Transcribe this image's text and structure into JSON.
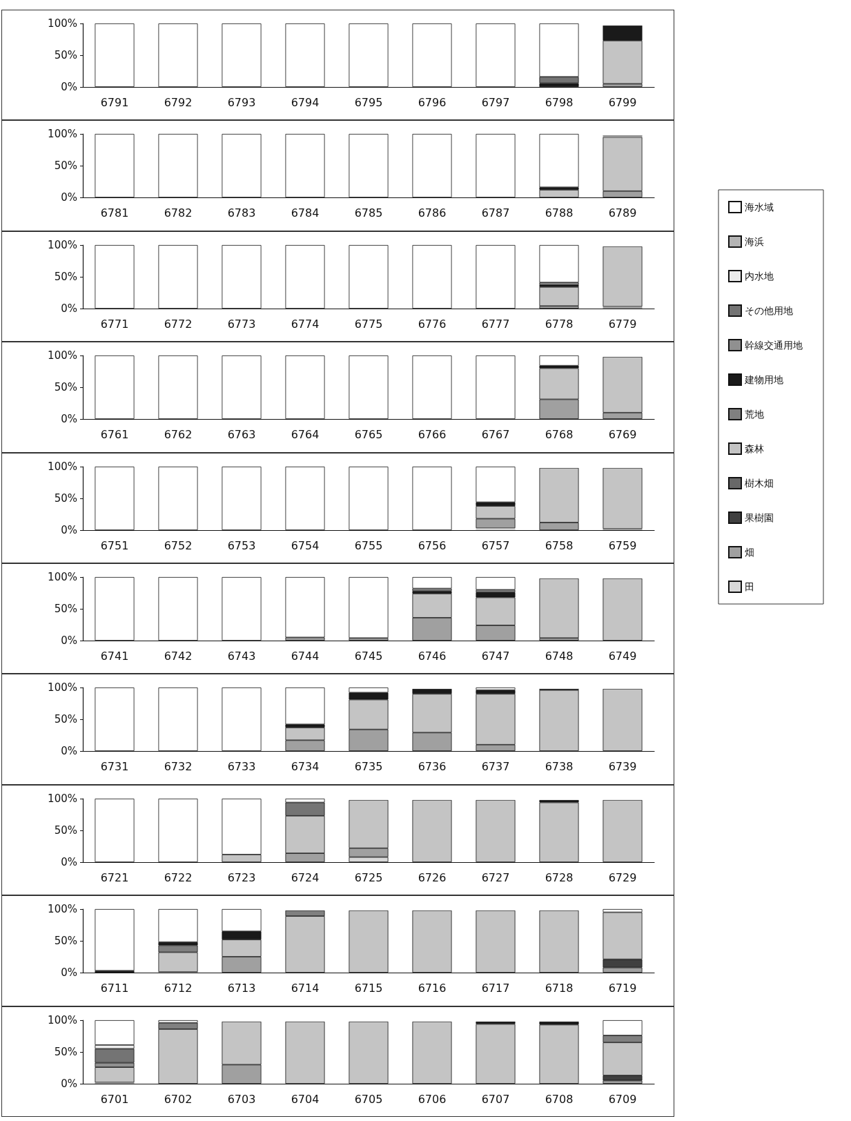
{
  "chart_data": [
    {
      "type": "bar",
      "stacked": true,
      "legend": "right",
      "categories": [
        "6791",
        "6792",
        "6793",
        "6794",
        "6795",
        "6796",
        "6797",
        "6798",
        "6799"
      ],
      "ylim": [
        0,
        100
      ],
      "yticks": [
        {
          "value": 0,
          "label": "0%"
        },
        {
          "value": 50,
          "label": "50%"
        },
        {
          "value": 100,
          "label": "100%"
        }
      ],
      "series": [
        {
          "name": "田",
          "color": "#d8d8d8",
          "values": [
            0,
            0,
            0,
            0,
            0,
            0,
            0,
            0,
            0
          ]
        },
        {
          "name": "畑",
          "color": "#a0a0a0",
          "values": [
            0,
            0,
            0,
            0,
            0,
            0,
            0,
            0,
            5
          ]
        },
        {
          "name": "果樹園",
          "color": "#404040",
          "values": [
            0,
            0,
            0,
            0,
            0,
            0,
            0,
            0,
            0
          ]
        },
        {
          "name": "樹木畑",
          "color": "#686868",
          "values": [
            0,
            0,
            0,
            0,
            0,
            0,
            0,
            0,
            0
          ]
        },
        {
          "name": "森林",
          "color": "#c4c4c4",
          "values": [
            0,
            0,
            0,
            0,
            0,
            0,
            0,
            0,
            68
          ]
        },
        {
          "name": "荒地",
          "color": "#808080",
          "values": [
            0,
            0,
            0,
            0,
            0,
            0,
            0,
            0,
            0
          ]
        },
        {
          "name": "建物用地",
          "color": "#1a1a1a",
          "values": [
            0,
            0,
            0,
            0,
            0,
            0,
            0,
            6,
            24
          ]
        },
        {
          "name": "幹線交通用地",
          "color": "#909090",
          "values": [
            0,
            0,
            0,
            0,
            0,
            0,
            0,
            0,
            0
          ]
        },
        {
          "name": "その他用地",
          "color": "#747474",
          "values": [
            0,
            0,
            0,
            0,
            0,
            0,
            0,
            10,
            0
          ]
        },
        {
          "name": "内水地",
          "color": "#ececec",
          "values": [
            0,
            0,
            0,
            0,
            0,
            0,
            0,
            0,
            0
          ]
        },
        {
          "name": "海浜",
          "color": "#b4b4b4",
          "values": [
            0,
            0,
            0,
            0,
            0,
            0,
            0,
            0,
            0
          ]
        },
        {
          "name": "海水域",
          "color": "#ffffff",
          "values": [
            100,
            100,
            100,
            100,
            100,
            100,
            100,
            84,
            3
          ]
        }
      ]
    },
    {
      "type": "bar",
      "stacked": true,
      "categories": [
        "6781",
        "6782",
        "6783",
        "6784",
        "6785",
        "6786",
        "6787",
        "6788",
        "6789"
      ],
      "ylim": [
        0,
        100
      ],
      "yticks": [
        {
          "value": 0,
          "label": "0%"
        },
        {
          "value": 50,
          "label": "50%"
        },
        {
          "value": 100,
          "label": "100%"
        }
      ],
      "series": [
        {
          "color": "#d8d8d8",
          "values": [
            0,
            0,
            0,
            0,
            0,
            0,
            0,
            0,
            0
          ]
        },
        {
          "color": "#a0a0a0",
          "values": [
            0,
            0,
            0,
            0,
            0,
            0,
            0,
            0,
            10
          ]
        },
        {
          "color": "#404040",
          "values": [
            0,
            0,
            0,
            0,
            0,
            0,
            0,
            0,
            0
          ]
        },
        {
          "color": "#686868",
          "values": [
            0,
            0,
            0,
            0,
            0,
            0,
            0,
            0,
            0
          ]
        },
        {
          "color": "#c4c4c4",
          "values": [
            0,
            0,
            0,
            0,
            0,
            0,
            0,
            12,
            85
          ]
        },
        {
          "color": "#808080",
          "values": [
            0,
            0,
            0,
            0,
            0,
            0,
            0,
            0,
            0
          ]
        },
        {
          "color": "#1a1a1a",
          "values": [
            0,
            0,
            0,
            0,
            0,
            0,
            0,
            4,
            0
          ]
        },
        {
          "color": "#909090",
          "values": [
            0,
            0,
            0,
            0,
            0,
            0,
            0,
            0,
            3
          ]
        },
        {
          "color": "#747474",
          "values": [
            0,
            0,
            0,
            0,
            0,
            0,
            0,
            0,
            0
          ]
        },
        {
          "color": "#ececec",
          "values": [
            0,
            0,
            0,
            0,
            0,
            0,
            0,
            0,
            0
          ]
        },
        {
          "color": "#b4b4b4",
          "values": [
            0,
            0,
            0,
            0,
            0,
            0,
            0,
            0,
            0
          ]
        },
        {
          "color": "#ffffff",
          "values": [
            100,
            100,
            100,
            100,
            100,
            100,
            100,
            84,
            2
          ]
        }
      ]
    },
    {
      "type": "bar",
      "stacked": true,
      "categories": [
        "6771",
        "6772",
        "6773",
        "6774",
        "6775",
        "6776",
        "6777",
        "6778",
        "6779"
      ],
      "ylim": [
        0,
        100
      ],
      "yticks": [
        {
          "value": 0,
          "label": "0%"
        },
        {
          "value": 50,
          "label": "50%"
        },
        {
          "value": 100,
          "label": "100%"
        }
      ],
      "series": [
        {
          "color": "#d8d8d8",
          "values": [
            0,
            0,
            0,
            0,
            0,
            0,
            0,
            0,
            0
          ]
        },
        {
          "color": "#a0a0a0",
          "values": [
            0,
            0,
            0,
            0,
            0,
            0,
            0,
            4,
            3
          ]
        },
        {
          "color": "#404040",
          "values": [
            0,
            0,
            0,
            0,
            0,
            0,
            0,
            0,
            0
          ]
        },
        {
          "color": "#686868",
          "values": [
            0,
            0,
            0,
            0,
            0,
            0,
            0,
            0,
            0
          ]
        },
        {
          "color": "#c4c4c4",
          "values": [
            0,
            0,
            0,
            0,
            0,
            0,
            0,
            30,
            95
          ]
        },
        {
          "color": "#808080",
          "values": [
            0,
            0,
            0,
            0,
            0,
            0,
            0,
            0,
            0
          ]
        },
        {
          "color": "#1a1a1a",
          "values": [
            0,
            0,
            0,
            0,
            0,
            0,
            0,
            3,
            0
          ]
        },
        {
          "color": "#909090",
          "values": [
            0,
            0,
            0,
            0,
            0,
            0,
            0,
            4,
            0
          ]
        },
        {
          "color": "#747474",
          "values": [
            0,
            0,
            0,
            0,
            0,
            0,
            0,
            0,
            0
          ]
        },
        {
          "color": "#ececec",
          "values": [
            0,
            0,
            0,
            0,
            0,
            0,
            0,
            0,
            0
          ]
        },
        {
          "color": "#b4b4b4",
          "values": [
            0,
            0,
            0,
            0,
            0,
            0,
            0,
            0,
            0
          ]
        },
        {
          "color": "#ffffff",
          "values": [
            100,
            100,
            100,
            100,
            100,
            100,
            100,
            59,
            2
          ]
        }
      ]
    },
    {
      "type": "bar",
      "stacked": true,
      "categories": [
        "6761",
        "6762",
        "6763",
        "6764",
        "6765",
        "6766",
        "6767",
        "6768",
        "6769"
      ],
      "ylim": [
        0,
        100
      ],
      "yticks": [
        {
          "value": 0,
          "label": "0%"
        },
        {
          "value": 50,
          "label": "50%"
        },
        {
          "value": 100,
          "label": "100%"
        }
      ],
      "series": [
        {
          "color": "#d8d8d8",
          "values": [
            0,
            0,
            0,
            0,
            0,
            0,
            0,
            0,
            0
          ]
        },
        {
          "color": "#a0a0a0",
          "values": [
            0,
            0,
            0,
            0,
            0,
            0,
            0,
            31,
            10
          ]
        },
        {
          "color": "#404040",
          "values": [
            0,
            0,
            0,
            0,
            0,
            0,
            0,
            0,
            0
          ]
        },
        {
          "color": "#686868",
          "values": [
            0,
            0,
            0,
            0,
            0,
            0,
            0,
            0,
            0
          ]
        },
        {
          "color": "#c4c4c4",
          "values": [
            0,
            0,
            0,
            0,
            0,
            0,
            0,
            49,
            88
          ]
        },
        {
          "color": "#808080",
          "values": [
            0,
            0,
            0,
            0,
            0,
            0,
            0,
            0,
            0
          ]
        },
        {
          "color": "#1a1a1a",
          "values": [
            0,
            0,
            0,
            0,
            0,
            0,
            0,
            4,
            0
          ]
        },
        {
          "color": "#909090",
          "values": [
            0,
            0,
            0,
            0,
            0,
            0,
            0,
            0,
            0
          ]
        },
        {
          "color": "#747474",
          "values": [
            0,
            0,
            0,
            0,
            0,
            0,
            0,
            0,
            0
          ]
        },
        {
          "color": "#ececec",
          "values": [
            0,
            0,
            0,
            0,
            0,
            0,
            0,
            0,
            0
          ]
        },
        {
          "color": "#b4b4b4",
          "values": [
            0,
            0,
            0,
            0,
            0,
            0,
            0,
            0,
            0
          ]
        },
        {
          "color": "#ffffff",
          "values": [
            100,
            100,
            100,
            100,
            100,
            100,
            100,
            16,
            2
          ]
        }
      ]
    },
    {
      "type": "bar",
      "stacked": true,
      "categories": [
        "6751",
        "6752",
        "6753",
        "6754",
        "6755",
        "6756",
        "6757",
        "6758",
        "6759"
      ],
      "ylim": [
        0,
        100
      ],
      "yticks": [
        {
          "value": 0,
          "label": "0%"
        },
        {
          "value": 50,
          "label": "50%"
        },
        {
          "value": 100,
          "label": "100%"
        }
      ],
      "series": [
        {
          "color": "#d8d8d8",
          "values": [
            0,
            0,
            0,
            0,
            0,
            0,
            3,
            0,
            0
          ]
        },
        {
          "color": "#a0a0a0",
          "values": [
            0,
            0,
            0,
            0,
            0,
            0,
            15,
            12,
            2
          ]
        },
        {
          "color": "#404040",
          "values": [
            0,
            0,
            0,
            0,
            0,
            0,
            0,
            0,
            0
          ]
        },
        {
          "color": "#686868",
          "values": [
            0,
            0,
            0,
            0,
            0,
            0,
            0,
            0,
            0
          ]
        },
        {
          "color": "#c4c4c4",
          "values": [
            0,
            0,
            0,
            0,
            0,
            0,
            20,
            86,
            96
          ]
        },
        {
          "color": "#808080",
          "values": [
            0,
            0,
            0,
            0,
            0,
            0,
            0,
            0,
            0
          ]
        },
        {
          "color": "#1a1a1a",
          "values": [
            0,
            0,
            0,
            0,
            0,
            0,
            6,
            0,
            0
          ]
        },
        {
          "color": "#909090",
          "values": [
            0,
            0,
            0,
            0,
            0,
            0,
            0,
            0,
            0
          ]
        },
        {
          "color": "#747474",
          "values": [
            0,
            0,
            0,
            0,
            0,
            0,
            0,
            0,
            0
          ]
        },
        {
          "color": "#ececec",
          "values": [
            0,
            0,
            0,
            0,
            0,
            0,
            0,
            0,
            0
          ]
        },
        {
          "color": "#b4b4b4",
          "values": [
            0,
            0,
            0,
            0,
            0,
            0,
            0,
            0,
            0
          ]
        },
        {
          "color": "#ffffff",
          "values": [
            100,
            100,
            100,
            100,
            100,
            100,
            56,
            2,
            2
          ]
        }
      ]
    },
    {
      "type": "bar",
      "stacked": true,
      "categories": [
        "6741",
        "6742",
        "6743",
        "6744",
        "6745",
        "6746",
        "6747",
        "6748",
        "6749"
      ],
      "ylim": [
        0,
        100
      ],
      "yticks": [
        {
          "value": 0,
          "label": "0%"
        },
        {
          "value": 50,
          "label": "50%"
        },
        {
          "value": 100,
          "label": "100%"
        }
      ],
      "series": [
        {
          "color": "#d8d8d8",
          "values": [
            0,
            0,
            0,
            0,
            0,
            0,
            0,
            0,
            0
          ]
        },
        {
          "color": "#a0a0a0",
          "values": [
            0,
            0,
            0,
            5,
            4,
            36,
            24,
            4,
            0
          ]
        },
        {
          "color": "#404040",
          "values": [
            0,
            0,
            0,
            0,
            0,
            0,
            0,
            0,
            0
          ]
        },
        {
          "color": "#686868",
          "values": [
            0,
            0,
            0,
            0,
            0,
            0,
            0,
            0,
            0
          ]
        },
        {
          "color": "#c4c4c4",
          "values": [
            0,
            0,
            0,
            0,
            0,
            38,
            44,
            94,
            98
          ]
        },
        {
          "color": "#808080",
          "values": [
            0,
            0,
            0,
            0,
            0,
            0,
            0,
            0,
            0
          ]
        },
        {
          "color": "#1a1a1a",
          "values": [
            0,
            0,
            0,
            0,
            0,
            4,
            8,
            0,
            0
          ]
        },
        {
          "color": "#909090",
          "values": [
            0,
            0,
            0,
            0,
            0,
            4,
            4,
            0,
            0
          ]
        },
        {
          "color": "#747474",
          "values": [
            0,
            0,
            0,
            0,
            0,
            0,
            0,
            0,
            0
          ]
        },
        {
          "color": "#ececec",
          "values": [
            0,
            0,
            0,
            0,
            0,
            0,
            0,
            0,
            0
          ]
        },
        {
          "color": "#b4b4b4",
          "values": [
            0,
            0,
            0,
            0,
            0,
            0,
            0,
            0,
            0
          ]
        },
        {
          "color": "#ffffff",
          "values": [
            100,
            100,
            100,
            95,
            96,
            18,
            20,
            2,
            2
          ]
        }
      ]
    },
    {
      "type": "bar",
      "stacked": true,
      "categories": [
        "6731",
        "6732",
        "6733",
        "6734",
        "6735",
        "6736",
        "6737",
        "6738",
        "6739"
      ],
      "ylim": [
        0,
        100
      ],
      "yticks": [
        {
          "value": 0,
          "label": "0%"
        },
        {
          "value": 50,
          "label": "50%"
        },
        {
          "value": 100,
          "label": "100%"
        }
      ],
      "series": [
        {
          "color": "#d8d8d8",
          "values": [
            0,
            0,
            0,
            0,
            0,
            0,
            0,
            0,
            0
          ]
        },
        {
          "color": "#a0a0a0",
          "values": [
            0,
            0,
            0,
            17,
            34,
            29,
            10,
            0,
            0
          ]
        },
        {
          "color": "#404040",
          "values": [
            0,
            0,
            0,
            0,
            0,
            0,
            0,
            0,
            0
          ]
        },
        {
          "color": "#686868",
          "values": [
            0,
            0,
            0,
            0,
            0,
            0,
            0,
            0,
            0
          ]
        },
        {
          "color": "#c4c4c4",
          "values": [
            0,
            0,
            0,
            20,
            47,
            61,
            80,
            96,
            98
          ]
        },
        {
          "color": "#808080",
          "values": [
            0,
            0,
            0,
            0,
            0,
            0,
            0,
            0,
            0
          ]
        },
        {
          "color": "#1a1a1a",
          "values": [
            0,
            0,
            0,
            5,
            11,
            8,
            6,
            2,
            0
          ]
        },
        {
          "color": "#909090",
          "values": [
            0,
            0,
            0,
            0,
            0,
            0,
            0,
            0,
            0
          ]
        },
        {
          "color": "#747474",
          "values": [
            0,
            0,
            0,
            0,
            0,
            0,
            0,
            0,
            0
          ]
        },
        {
          "color": "#ececec",
          "values": [
            0,
            0,
            0,
            0,
            0,
            0,
            0,
            0,
            0
          ]
        },
        {
          "color": "#b4b4b4",
          "values": [
            0,
            0,
            0,
            0,
            0,
            0,
            0,
            0,
            0
          ]
        },
        {
          "color": "#ffffff",
          "values": [
            100,
            100,
            100,
            58,
            8,
            2,
            4,
            2,
            2
          ]
        }
      ]
    },
    {
      "type": "bar",
      "stacked": true,
      "categories": [
        "6721",
        "6722",
        "6723",
        "6724",
        "6725",
        "6726",
        "6727",
        "6728",
        "6729"
      ],
      "ylim": [
        0,
        100
      ],
      "yticks": [
        {
          "value": 0,
          "label": "0%"
        },
        {
          "value": 50,
          "label": "50%"
        },
        {
          "value": 100,
          "label": "100%"
        }
      ],
      "series": [
        {
          "color": "#d8d8d8",
          "values": [
            0,
            0,
            0,
            0,
            8,
            0,
            0,
            0,
            0
          ]
        },
        {
          "color": "#a0a0a0",
          "values": [
            0,
            0,
            0,
            14,
            14,
            0,
            0,
            0,
            0
          ]
        },
        {
          "color": "#404040",
          "values": [
            0,
            0,
            0,
            0,
            0,
            0,
            0,
            0,
            0
          ]
        },
        {
          "color": "#686868",
          "values": [
            0,
            0,
            0,
            0,
            0,
            0,
            0,
            0,
            0
          ]
        },
        {
          "color": "#c4c4c4",
          "values": [
            0,
            0,
            12,
            59,
            76,
            98,
            98,
            94,
            98
          ]
        },
        {
          "color": "#808080",
          "values": [
            0,
            0,
            0,
            0,
            0,
            0,
            0,
            0,
            0
          ]
        },
        {
          "color": "#1a1a1a",
          "values": [
            0,
            0,
            0,
            0,
            0,
            0,
            0,
            4,
            0
          ]
        },
        {
          "color": "#909090",
          "values": [
            0,
            0,
            0,
            0,
            0,
            0,
            0,
            0,
            0
          ]
        },
        {
          "color": "#747474",
          "values": [
            0,
            0,
            0,
            21,
            0,
            0,
            0,
            0,
            0
          ]
        },
        {
          "color": "#ececec",
          "values": [
            0,
            0,
            0,
            0,
            0,
            0,
            0,
            0,
            0
          ]
        },
        {
          "color": "#b4b4b4",
          "values": [
            0,
            0,
            0,
            0,
            0,
            0,
            0,
            0,
            0
          ]
        },
        {
          "color": "#ffffff",
          "values": [
            100,
            100,
            88,
            6,
            2,
            2,
            2,
            2,
            2
          ]
        }
      ]
    },
    {
      "type": "bar",
      "stacked": true,
      "categories": [
        "6711",
        "6712",
        "6713",
        "6714",
        "6715",
        "6716",
        "6717",
        "6718",
        "6719"
      ],
      "ylim": [
        0,
        100
      ],
      "yticks": [
        {
          "value": 0,
          "label": "0%"
        },
        {
          "value": 50,
          "label": "50%"
        },
        {
          "value": 100,
          "label": "100%"
        }
      ],
      "series": [
        {
          "color": "#d8d8d8",
          "values": [
            0,
            0,
            0,
            0,
            0,
            0,
            0,
            0,
            0
          ]
        },
        {
          "color": "#a0a0a0",
          "values": [
            0,
            1,
            25,
            0,
            0,
            0,
            0,
            0,
            8
          ]
        },
        {
          "color": "#404040",
          "values": [
            0,
            0,
            0,
            0,
            0,
            0,
            0,
            0,
            13
          ]
        },
        {
          "color": "#686868",
          "values": [
            0,
            0,
            0,
            0,
            0,
            0,
            0,
            0,
            0
          ]
        },
        {
          "color": "#c4c4c4",
          "values": [
            0,
            31,
            27,
            89,
            98,
            98,
            98,
            98,
            74
          ]
        },
        {
          "color": "#808080",
          "values": [
            0,
            11,
            0,
            9,
            0,
            0,
            0,
            0,
            0
          ]
        },
        {
          "color": "#1a1a1a",
          "values": [
            3,
            5,
            13,
            0,
            0,
            0,
            0,
            0,
            0
          ]
        },
        {
          "color": "#909090",
          "values": [
            0,
            0,
            0,
            0,
            0,
            0,
            0,
            0,
            0
          ]
        },
        {
          "color": "#747474",
          "values": [
            0,
            0,
            0,
            0,
            0,
            0,
            0,
            0,
            0
          ]
        },
        {
          "color": "#ececec",
          "values": [
            0,
            0,
            0,
            0,
            0,
            0,
            0,
            0,
            0
          ]
        },
        {
          "color": "#b4b4b4",
          "values": [
            0,
            0,
            0,
            0,
            0,
            0,
            0,
            0,
            0
          ]
        },
        {
          "color": "#ffffff",
          "values": [
            97,
            52,
            35,
            2,
            2,
            2,
            2,
            2,
            5
          ]
        }
      ]
    },
    {
      "type": "bar",
      "stacked": true,
      "categories": [
        "6701",
        "6702",
        "6703",
        "6704",
        "6705",
        "6706",
        "6707",
        "6708",
        "6709"
      ],
      "ylim": [
        0,
        100
      ],
      "yticks": [
        {
          "value": 0,
          "label": "0%"
        },
        {
          "value": 50,
          "label": "50%"
        },
        {
          "value": 100,
          "label": "100%"
        }
      ],
      "series": [
        {
          "color": "#d8d8d8",
          "values": [
            0,
            0,
            0,
            0,
            0,
            0,
            0,
            0,
            0
          ]
        },
        {
          "color": "#a0a0a0",
          "values": [
            2,
            0,
            30,
            0,
            0,
            0,
            0,
            0,
            5
          ]
        },
        {
          "color": "#404040",
          "values": [
            0,
            0,
            0,
            0,
            0,
            0,
            0,
            0,
            8
          ]
        },
        {
          "color": "#686868",
          "values": [
            0,
            0,
            0,
            0,
            0,
            0,
            0,
            0,
            0
          ]
        },
        {
          "color": "#c4c4c4",
          "values": [
            24,
            86,
            68,
            98,
            98,
            98,
            94,
            93,
            52
          ]
        },
        {
          "color": "#808080",
          "values": [
            0,
            10,
            0,
            0,
            0,
            0,
            0,
            0,
            11
          ]
        },
        {
          "color": "#1a1a1a",
          "values": [
            0,
            0,
            0,
            0,
            0,
            0,
            4,
            5,
            0
          ]
        },
        {
          "color": "#909090",
          "values": [
            7,
            0,
            0,
            0,
            0,
            0,
            0,
            0,
            0
          ]
        },
        {
          "color": "#747474",
          "values": [
            22,
            0,
            0,
            0,
            0,
            0,
            0,
            0,
            0
          ]
        },
        {
          "color": "#ececec",
          "values": [
            6,
            0,
            0,
            0,
            0,
            0,
            0,
            0,
            0
          ]
        },
        {
          "color": "#b4b4b4",
          "values": [
            0,
            0,
            0,
            0,
            0,
            0,
            0,
            0,
            0
          ]
        },
        {
          "color": "#ffffff",
          "values": [
            39,
            4,
            2,
            2,
            2,
            2,
            2,
            2,
            24
          ]
        }
      ]
    }
  ]
}
